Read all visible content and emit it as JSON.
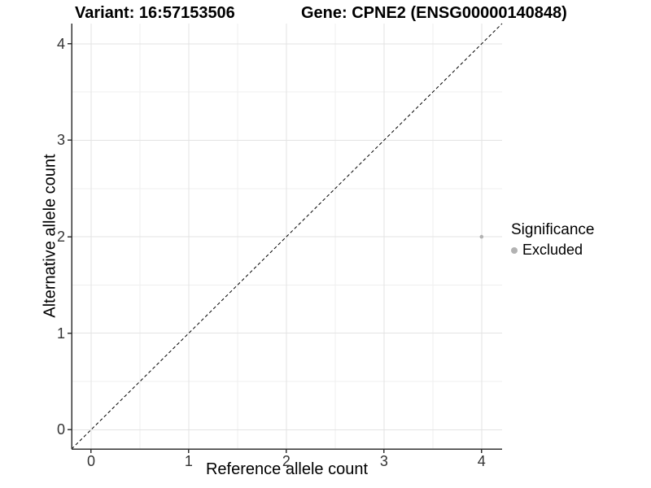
{
  "header": {
    "variant_title": "Variant: 16:57153506",
    "gene_title": "Gene: CPNE2 (ENSG00000140848)"
  },
  "axes": {
    "x": {
      "title": "Reference allele count",
      "tick_labels": [
        "0",
        "1",
        "2",
        "3",
        "4"
      ]
    },
    "y": {
      "title": "Alternative allele count",
      "tick_labels": [
        "0",
        "1",
        "2",
        "3",
        "4"
      ]
    }
  },
  "legend": {
    "title": "Significance",
    "items": [
      {
        "label": "Excluded",
        "color": "#b2b2b2"
      }
    ]
  },
  "chart_data": {
    "type": "scatter",
    "title": "Variant: 16:57153506 | Gene: CPNE2 (ENSG00000140848)",
    "xlabel": "Reference allele count",
    "ylabel": "Alternative allele count",
    "xlim": [
      -0.2,
      4.21
    ],
    "ylim": [
      -0.2,
      4.21
    ],
    "x_ticks": [
      0,
      1,
      2,
      3,
      4
    ],
    "y_ticks": [
      0,
      1,
      2,
      3,
      4
    ],
    "x_minor_ticks": [
      0.5,
      1.5,
      2.5,
      3.5
    ],
    "y_minor_ticks": [
      0.5,
      1.5,
      2.5,
      3.5
    ],
    "grid": "major+minor",
    "legend_position": "right",
    "series": [
      {
        "name": "Excluded",
        "color": "#b2b2b2",
        "point_radius": 2.3,
        "points": [
          {
            "x": 4,
            "y": 2
          }
        ]
      }
    ],
    "reference_line": {
      "style": "dashed",
      "equation": "y = x",
      "color": "#000000"
    }
  },
  "colors": {
    "background": "#ffffff",
    "grid_major": "#e3e3e3",
    "grid_minor": "#efefef",
    "axis_line": "#333333",
    "tick_mark": "#333333",
    "tick_text": "#333333",
    "point": "#b2b2b2"
  }
}
